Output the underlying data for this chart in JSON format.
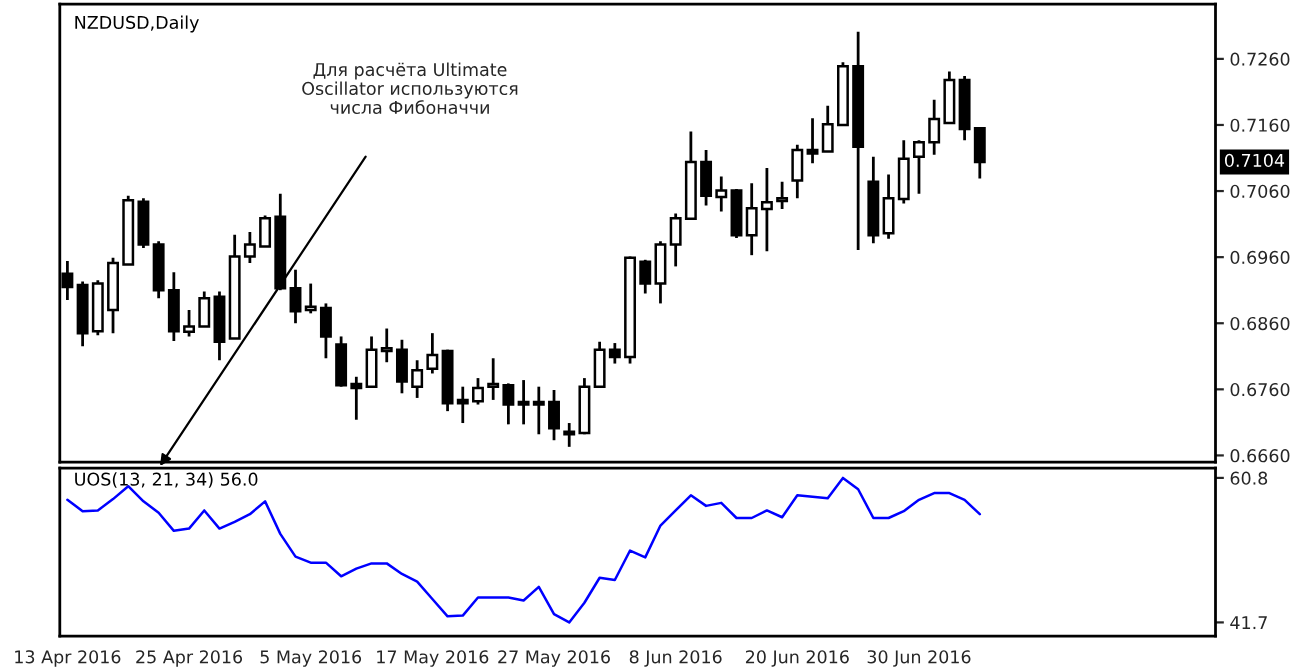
{
  "chart_data": [
    {
      "type": "candlestick",
      "title": "NZDUSD,Daily",
      "color": "#000000",
      "tick_labels": "y",
      "categories": [
        null,
        null,
        null,
        null,
        null,
        null,
        null,
        null,
        null,
        null,
        null,
        null,
        null,
        null,
        null,
        null,
        null,
        null,
        null,
        null,
        null,
        null,
        null,
        null,
        null,
        null,
        null,
        null,
        null,
        null,
        null,
        null,
        null,
        null,
        null,
        null,
        null,
        null,
        null,
        null,
        null,
        null,
        null,
        null,
        null,
        null,
        null,
        null,
        null,
        null,
        null,
        null,
        null,
        null,
        null,
        null,
        null,
        null,
        null,
        null,
        null,
        null,
        null,
        null,
        null,
        null,
        null,
        null,
        null,
        null,
        null,
        null,
        null,
        null,
        null,
        null
      ],
      "ohlc": [
        [
          0.6935,
          0.6954,
          0.6895,
          0.6915
        ],
        [
          0.6918,
          0.6923,
          0.6825,
          0.6845
        ],
        [
          0.6848,
          0.6925,
          0.6842,
          0.692
        ],
        [
          0.688,
          0.6959,
          0.6845,
          0.6951
        ],
        [
          0.6949,
          0.7053,
          0.6949,
          0.7046
        ],
        [
          0.7044,
          0.7049,
          0.6974,
          0.6979
        ],
        [
          0.6979,
          0.6984,
          0.6898,
          0.691
        ],
        [
          0.691,
          0.6937,
          0.6833,
          0.6848
        ],
        [
          0.6847,
          0.688,
          0.684,
          0.6855
        ],
        [
          0.6855,
          0.6908,
          0.6855,
          0.6898
        ],
        [
          0.69,
          0.6908,
          0.6804,
          0.6832
        ],
        [
          0.6837,
          0.6994,
          0.6837,
          0.6961
        ],
        [
          0.6961,
          0.6998,
          0.6951,
          0.6979
        ],
        [
          0.6976,
          0.7023,
          0.6976,
          0.7019
        ],
        [
          0.7021,
          0.7056,
          0.691,
          0.6913
        ],
        [
          0.6913,
          0.6941,
          0.686,
          0.6878
        ],
        [
          0.688,
          0.692,
          0.6875,
          0.6885
        ],
        [
          0.6883,
          0.689,
          0.6807,
          0.684
        ],
        [
          0.6828,
          0.684,
          0.6764,
          0.6766
        ],
        [
          0.6768,
          0.6779,
          0.6714,
          0.6762
        ],
        [
          0.6764,
          0.684,
          0.6762,
          0.682
        ],
        [
          0.6818,
          0.6852,
          0.6801,
          0.6822
        ],
        [
          0.682,
          0.6835,
          0.6754,
          0.6772
        ],
        [
          0.6764,
          0.6804,
          0.6747,
          0.6789
        ],
        [
          0.6791,
          0.6845,
          0.6784,
          0.6812
        ],
        [
          0.6818,
          0.682,
          0.6727,
          0.6739
        ],
        [
          0.6744,
          0.6764,
          0.6709,
          0.6739
        ],
        [
          0.6742,
          0.6777,
          0.6737,
          0.6762
        ],
        [
          0.6764,
          0.6807,
          0.6744,
          0.6768
        ],
        [
          0.6766,
          0.6769,
          0.6707,
          0.6737
        ],
        [
          0.6741,
          0.6774,
          0.6707,
          0.6737
        ],
        [
          0.6737,
          0.6764,
          0.6692,
          0.6741
        ],
        [
          0.6741,
          0.6759,
          0.6683,
          0.6701
        ],
        [
          0.6696,
          0.6709,
          0.6673,
          0.6692
        ],
        [
          0.6694,
          0.6777,
          0.6692,
          0.6764
        ],
        [
          0.6764,
          0.6832,
          0.6762,
          0.682
        ],
        [
          0.682,
          0.683,
          0.6799,
          0.6809
        ],
        [
          0.6809,
          0.6961,
          0.6799,
          0.6959
        ],
        [
          0.6953,
          0.6956,
          0.6905,
          0.692
        ],
        [
          0.692,
          0.6984,
          0.689,
          0.6979
        ],
        [
          0.6979,
          0.7026,
          0.6946,
          0.7019
        ],
        [
          0.7018,
          0.715,
          0.7018,
          0.7104
        ],
        [
          0.7104,
          0.7122,
          0.7038,
          0.7053
        ],
        [
          0.7051,
          0.7082,
          0.7029,
          0.7061
        ],
        [
          0.7061,
          0.7063,
          0.6989,
          0.6993
        ],
        [
          0.6993,
          0.7072,
          0.6963,
          0.7034
        ],
        [
          0.7033,
          0.7095,
          0.6969,
          0.7043
        ],
        [
          0.7045,
          0.7074,
          0.7033,
          0.7049
        ],
        [
          0.7076,
          0.713,
          0.7049,
          0.7122
        ],
        [
          0.7122,
          0.717,
          0.7102,
          0.7117
        ],
        [
          0.712,
          0.7189,
          0.712,
          0.7161
        ],
        [
          0.716,
          0.7255,
          0.716,
          0.7249
        ],
        [
          0.7249,
          0.7301,
          0.6971,
          0.7127
        ],
        [
          0.7074,
          0.7112,
          0.6981,
          0.6993
        ],
        [
          0.6996,
          0.7085,
          0.6988,
          0.7049
        ],
        [
          0.7048,
          0.7137,
          0.7041,
          0.7109
        ],
        [
          0.7112,
          0.7137,
          0.7056,
          0.7134
        ],
        [
          0.7134,
          0.7198,
          0.7115,
          0.7169
        ],
        [
          0.7163,
          0.7241,
          0.7163,
          0.7228
        ],
        [
          0.7228,
          0.7234,
          0.7137,
          0.7154
        ],
        [
          0.7155,
          0.7155,
          0.7079,
          0.7104
        ],
        null,
        null,
        null,
        null,
        null,
        null,
        null,
        null,
        null,
        null,
        null,
        null,
        null,
        null,
        null
      ],
      "ylim": [
        0.665,
        0.7343
      ],
      "yticks": [
        {
          "value": 0.666,
          "label": "0.6660"
        },
        {
          "value": 0.676,
          "label": "0.6760"
        },
        {
          "value": 0.686,
          "label": "0.6860"
        },
        {
          "value": 0.696,
          "label": "0.6960"
        },
        {
          "value": 0.706,
          "label": "0.7060"
        },
        {
          "value": 0.716,
          "label": "0.7160"
        },
        {
          "value": 0.726,
          "label": "0.7260"
        }
      ],
      "annotations": [
        "Для расчёта Ultimate\nOscillator используются\nчисла Фибоначчи",
        {
          "text": "0.7104",
          "y": 0.7104
        }
      ]
    },
    {
      "type": "line",
      "title": "UOS(13, 21, 34) 56.0",
      "categories": [
        "13 Apr 2016",
        null,
        null,
        null,
        null,
        null,
        null,
        null,
        "25 Apr 2016",
        null,
        null,
        null,
        null,
        null,
        null,
        null,
        "5 May 2016",
        null,
        null,
        null,
        null,
        null,
        null,
        null,
        "17 May 2016",
        null,
        null,
        null,
        null,
        null,
        null,
        null,
        "27 May 2016",
        null,
        null,
        null,
        null,
        null,
        null,
        null,
        "8 Jun 2016",
        null,
        null,
        null,
        null,
        null,
        null,
        null,
        "20 Jun 2016",
        null,
        null,
        null,
        null,
        null,
        null,
        null,
        "30 Jun 2016",
        null,
        null,
        null,
        null,
        null,
        null,
        null,
        null,
        null,
        null,
        null,
        null,
        null,
        null,
        null,
        null,
        null,
        null,
        null
      ],
      "series": [
        {
          "color": "#0000ff",
          "values": [
            57.9,
            56.4,
            56.5,
            58.0,
            59.7,
            57.7,
            56.2,
            53.8,
            54.1,
            56.5,
            54.1,
            55.0,
            56.0,
            57.7,
            53.4,
            50.4,
            49.6,
            49.6,
            47.8,
            48.8,
            49.5,
            49.5,
            48.1,
            47.1,
            44.8,
            42.5,
            42.6,
            45.0,
            45.0,
            45.0,
            44.6,
            46.4,
            42.8,
            41.7,
            44.3,
            47.6,
            47.3,
            51.2,
            50.3,
            54.5,
            56.5,
            58.5,
            57.1,
            57.5,
            55.5,
            55.5,
            56.5,
            55.6,
            58.5,
            58.3,
            58.1,
            60.8,
            59.3,
            55.5,
            55.5,
            56.4,
            57.9,
            58.8,
            58.8,
            57.9,
            56.0,
            null,
            null,
            null,
            null,
            null,
            null,
            null,
            null,
            null,
            null,
            null,
            null,
            null,
            null,
            null
          ]
        }
      ],
      "ylim": [
        39.9,
        62.1
      ],
      "yticks": [
        41.7,
        60.8
      ]
    }
  ]
}
